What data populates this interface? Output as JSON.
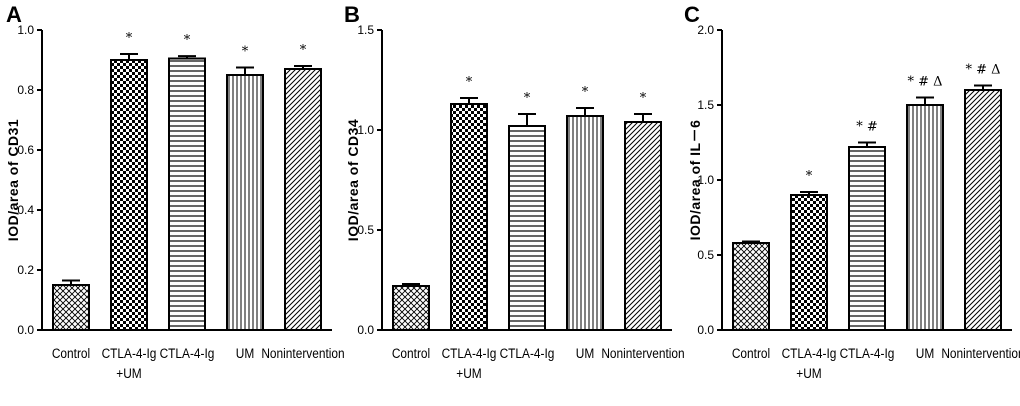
{
  "chart_data": [
    {
      "type": "bar",
      "panel": "A",
      "ylabel": "IOD/area of CD31",
      "ylim": [
        0,
        1.0
      ],
      "yticks": [
        "0.0",
        "0.2",
        "0.4",
        "0.6",
        "0.8",
        "1.0"
      ],
      "categories": [
        "Control",
        "CTLA-4-Ig\n+UM",
        "CTLA-4-Ig",
        "UM",
        "Nonintervention"
      ],
      "values": [
        0.15,
        0.9,
        0.905,
        0.85,
        0.87
      ],
      "errors": [
        0.015,
        0.02,
        0.008,
        0.025,
        0.01
      ],
      "annotations": [
        "",
        "*",
        "*",
        "*",
        "*"
      ],
      "patterns": [
        "crosshatch",
        "checker",
        "hlines",
        "vlines",
        "diag"
      ]
    },
    {
      "type": "bar",
      "panel": "B",
      "ylabel": "IOD/area of CD34",
      "ylim": [
        0,
        1.5
      ],
      "yticks": [
        "0.0",
        "0.5",
        "1.0",
        "1.5"
      ],
      "categories": [
        "Control",
        "CTLA-4-Ig\n+UM",
        "CTLA-4-Ig",
        "UM",
        "Nonintervention"
      ],
      "values": [
        0.22,
        1.13,
        1.02,
        1.07,
        1.04
      ],
      "errors": [
        0.01,
        0.03,
        0.06,
        0.04,
        0.04
      ],
      "annotations": [
        "",
        "*",
        "*",
        "*",
        "*"
      ],
      "patterns": [
        "crosshatch",
        "checker",
        "hlines",
        "vlines",
        "diag"
      ]
    },
    {
      "type": "bar",
      "panel": "C",
      "ylabel": "IOD/area of IL－6",
      "ylim": [
        0,
        2.0
      ],
      "yticks": [
        "0.0",
        "0.5",
        "1.0",
        "1.5",
        "2.0"
      ],
      "categories": [
        "Control",
        "CTLA-4-Ig\n+UM",
        "CTLA-4-Ig",
        "UM",
        "Nonintervention"
      ],
      "values": [
        0.58,
        0.9,
        1.22,
        1.5,
        1.6
      ],
      "errors": [
        0.01,
        0.02,
        0.03,
        0.05,
        0.03
      ],
      "annotations": [
        "",
        "*",
        "* #",
        "* # Δ",
        "* # Δ"
      ],
      "patterns": [
        "crosshatch",
        "checker",
        "hlines",
        "vlines",
        "diag"
      ]
    }
  ]
}
